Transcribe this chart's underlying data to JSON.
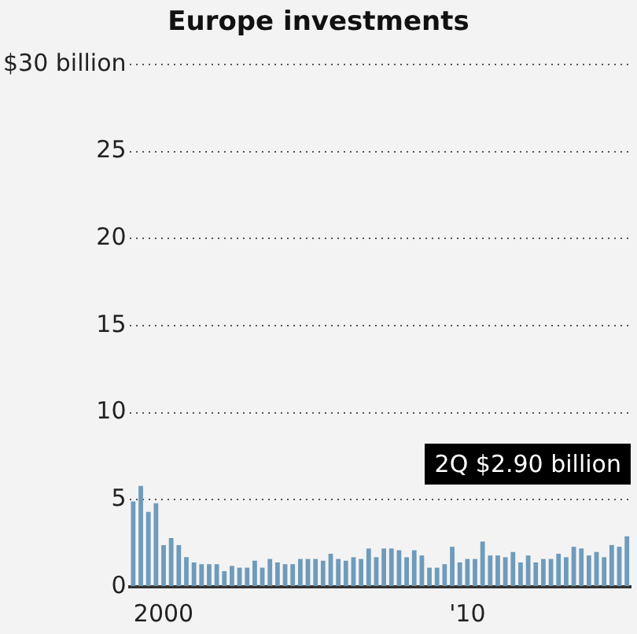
{
  "chart_data": {
    "type": "bar",
    "title": "Europe investments",
    "categories": [
      null,
      null,
      null,
      null,
      "2000",
      null,
      null,
      null,
      null,
      null,
      null,
      null,
      null,
      null,
      null,
      null,
      null,
      null,
      null,
      null,
      null,
      null,
      null,
      null,
      null,
      null,
      null,
      null,
      null,
      null,
      null,
      null,
      null,
      null,
      null,
      null,
      null,
      null,
      null,
      null,
      null,
      null,
      null,
      null,
      "'10",
      null,
      null,
      null,
      null,
      null,
      null,
      null,
      null,
      null,
      null,
      null,
      null,
      null,
      null,
      null,
      null,
      null,
      null,
      null,
      null,
      null
    ],
    "values": [
      4.9,
      5.8,
      4.3,
      4.8,
      2.4,
      2.8,
      2.4,
      1.7,
      1.4,
      1.3,
      1.3,
      1.3,
      0.9,
      1.2,
      1.1,
      1.1,
      1.5,
      1.1,
      1.6,
      1.4,
      1.3,
      1.3,
      1.6,
      1.6,
      1.6,
      1.5,
      1.9,
      1.6,
      1.5,
      1.7,
      1.6,
      2.2,
      1.7,
      2.2,
      2.2,
      2.1,
      1.7,
      2.1,
      1.8,
      1.1,
      1.1,
      1.3,
      2.3,
      1.4,
      1.6,
      1.6,
      2.6,
      1.8,
      1.8,
      1.7,
      2.0,
      1.4,
      1.8,
      1.4,
      1.6,
      1.6,
      1.9,
      1.7,
      2.3,
      2.2,
      1.8,
      2.0,
      1.7,
      2.4,
      2.3,
      2.9
    ],
    "color": "#6f9bbb",
    "ylim": [
      0,
      30
    ],
    "yticks": [
      0,
      5,
      10,
      15,
      20,
      25,
      {
        "value": 30,
        "label": "$30 billion"
      }
    ],
    "grid": "y",
    "annotations": [
      "2Q $2.90 billion"
    ]
  }
}
